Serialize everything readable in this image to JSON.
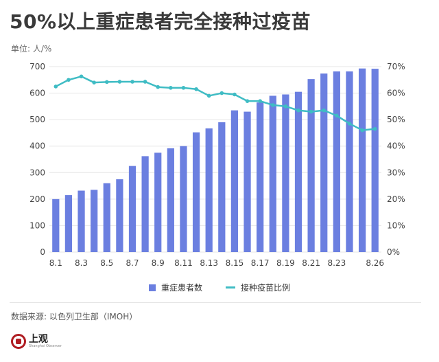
{
  "header": {
    "title": "50%以上重症患者完全接种过疫苗",
    "unit": "单位: 人/%"
  },
  "legend": {
    "bars_label": "重症患者数",
    "line_label": "接种疫苗比例"
  },
  "footer": {
    "source": "数据来源: 以色列卫生部（IMOH）",
    "brand_name": "上观",
    "brand_sub": "Shanghai Observer"
  },
  "colors": {
    "bar": "#6b7fe0",
    "line": "#3fbcc4",
    "grid": "#e6e6e6",
    "axis_text": "#444444"
  },
  "chart_data": {
    "type": "bar",
    "x": [
      "8.1",
      "8.2",
      "8.3",
      "8.4",
      "8.5",
      "8.6",
      "8.7",
      "8.8",
      "8.9",
      "8.10",
      "8.11",
      "8.12",
      "8.13",
      "8.14",
      "8.15",
      "8.16",
      "8.17",
      "8.18",
      "8.19",
      "8.20",
      "8.21",
      "8.22",
      "8.23",
      "8.24",
      "8.25",
      "8.26"
    ],
    "x_tick_labels": [
      "8.1",
      "8.3",
      "8.5",
      "8.7",
      "8.9",
      "8.11",
      "8.13",
      "8.15",
      "8.17",
      "8.19",
      "8.21",
      "8.23",
      "8.26"
    ],
    "x_tick_positions": [
      "8.1",
      "8.3",
      "8.5",
      "8.7",
      "8.9",
      "8.11",
      "8.13",
      "8.15",
      "8.17",
      "8.19",
      "8.21",
      "8.23",
      "8.26"
    ],
    "series": [
      {
        "name": "重症患者数",
        "type": "bar",
        "axis": "left",
        "values": [
          200,
          215,
          232,
          235,
          260,
          275,
          325,
          362,
          375,
          392,
          400,
          452,
          467,
          490,
          535,
          530,
          565,
          590,
          595,
          605,
          653,
          674,
          682,
          682,
          693,
          692
        ]
      },
      {
        "name": "接种疫苗比例",
        "type": "line",
        "axis": "right",
        "values": [
          62.5,
          65.0,
          66.3,
          64.0,
          64.2,
          64.3,
          64.3,
          64.3,
          62.3,
          62.0,
          62.0,
          61.5,
          59.0,
          60.0,
          59.5,
          57.0,
          57.0,
          55.5,
          55.0,
          53.5,
          53.0,
          53.5,
          51.5,
          48.5,
          46.0,
          46.5
        ]
      }
    ],
    "ylim_left": [
      0,
      700
    ],
    "yticks_left": [
      0,
      100,
      200,
      300,
      400,
      500,
      600,
      700
    ],
    "ylim_right": [
      0,
      70
    ],
    "yticks_right": [
      "0%",
      "10%",
      "20%",
      "30%",
      "40%",
      "50%",
      "60%",
      "70%"
    ],
    "grid": true,
    "legend_position": "bottom"
  }
}
